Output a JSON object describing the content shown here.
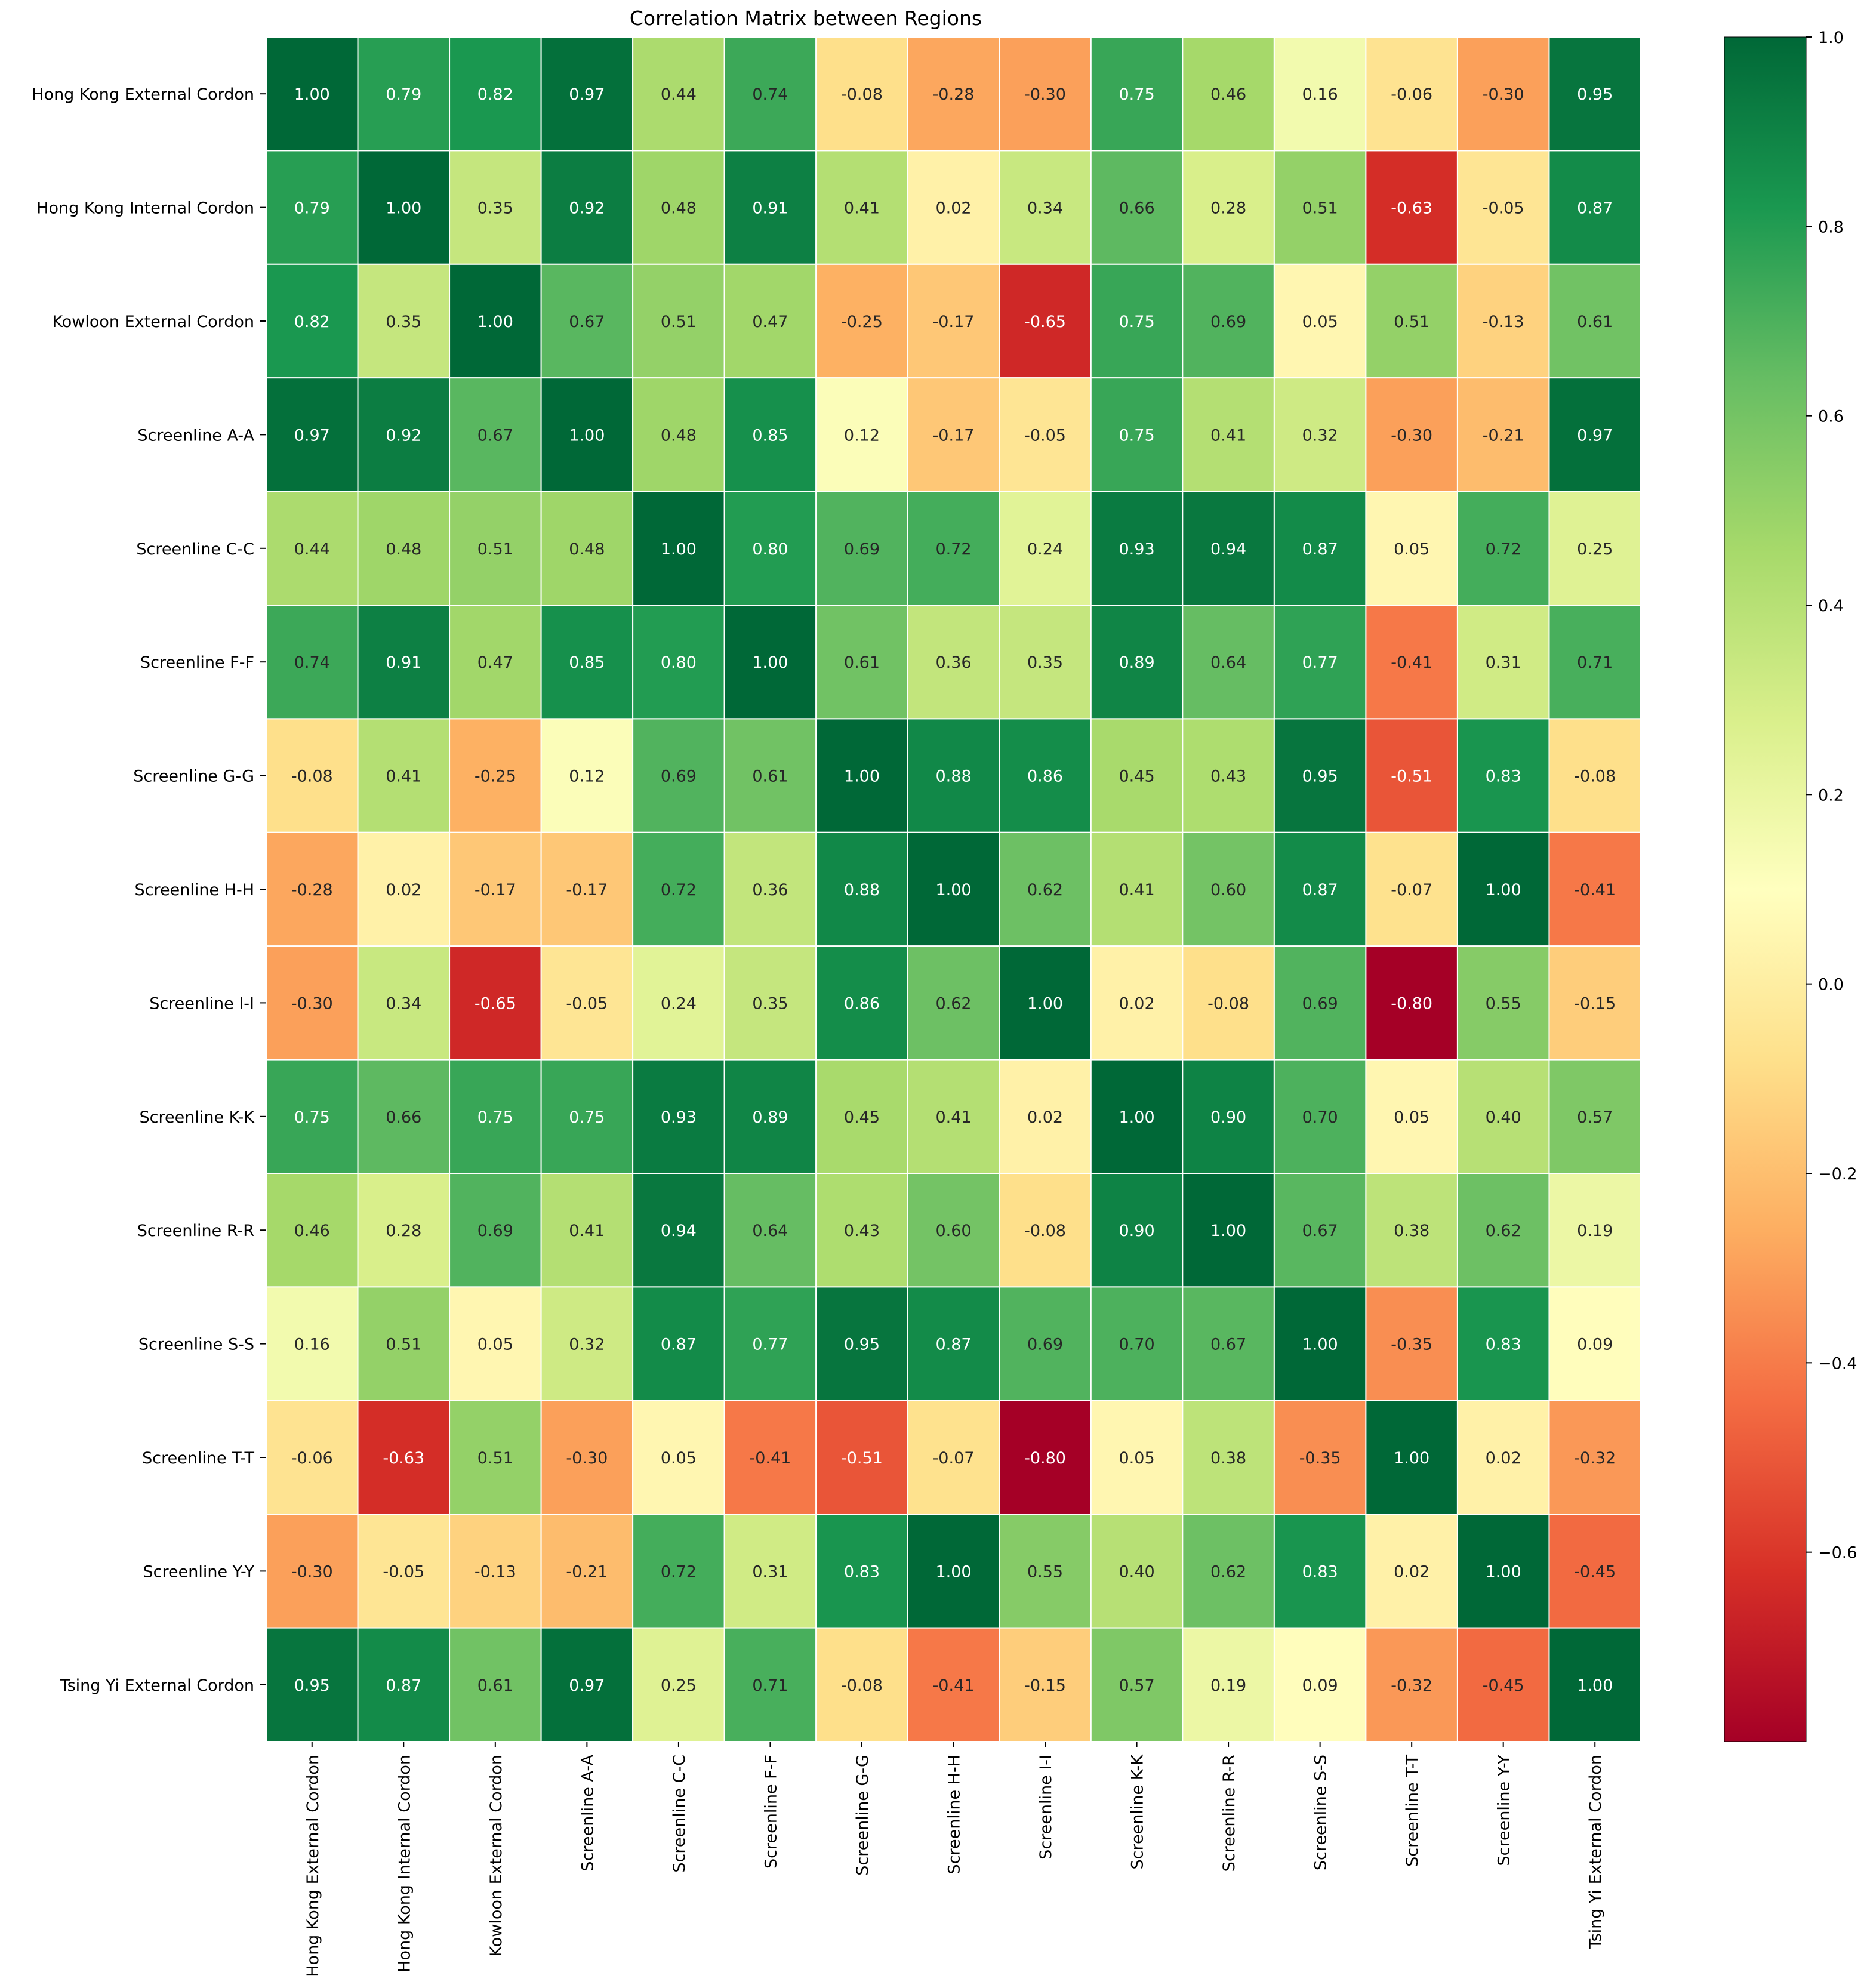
{
  "chart_data": {
    "type": "heatmap",
    "title": "Correlation Matrix between Regions",
    "xlabel": "",
    "ylabel": "",
    "colormap": "RdYlGn",
    "colorbar_range": [
      -0.8,
      1.0
    ],
    "colorbar_ticks": [
      "1.0",
      "0.8",
      "0.6",
      "0.4",
      "0.2",
      "0.0",
      "−0.2",
      "−0.4",
      "−0.6"
    ],
    "colorbar_tick_values": [
      1.0,
      0.8,
      0.6,
      0.4,
      0.2,
      0.0,
      -0.2,
      -0.4,
      -0.6
    ],
    "labels": [
      "Hong Kong External Cordon",
      "Hong Kong Internal Cordon",
      "Kowloon External Cordon",
      "Screenline A-A",
      "Screenline C-C",
      "Screenline F-F",
      "Screenline G-G",
      "Screenline H-H",
      "Screenline I-I",
      "Screenline K-K",
      "Screenline R-R",
      "Screenline S-S",
      "Screenline T-T",
      "Screenline Y-Y",
      "Tsing Yi External Cordon"
    ],
    "matrix": [
      [
        1.0,
        0.79,
        0.82,
        0.97,
        0.44,
        0.74,
        -0.08,
        -0.28,
        -0.3,
        0.75,
        0.46,
        0.16,
        -0.06,
        -0.3,
        0.95
      ],
      [
        0.79,
        1.0,
        0.35,
        0.92,
        0.48,
        0.91,
        0.41,
        0.02,
        0.34,
        0.66,
        0.28,
        0.51,
        -0.63,
        -0.05,
        0.87
      ],
      [
        0.82,
        0.35,
        1.0,
        0.67,
        0.51,
        0.47,
        -0.25,
        -0.17,
        -0.65,
        0.75,
        0.69,
        0.05,
        0.51,
        -0.13,
        0.61
      ],
      [
        0.97,
        0.92,
        0.67,
        1.0,
        0.48,
        0.85,
        0.12,
        -0.17,
        -0.05,
        0.75,
        0.41,
        0.32,
        -0.3,
        -0.21,
        0.97
      ],
      [
        0.44,
        0.48,
        0.51,
        0.48,
        1.0,
        0.8,
        0.69,
        0.72,
        0.24,
        0.93,
        0.94,
        0.87,
        0.05,
        0.72,
        0.25
      ],
      [
        0.74,
        0.91,
        0.47,
        0.85,
        0.8,
        1.0,
        0.61,
        0.36,
        0.35,
        0.89,
        0.64,
        0.77,
        -0.41,
        0.31,
        0.71
      ],
      [
        -0.08,
        0.41,
        -0.25,
        0.12,
        0.69,
        0.61,
        1.0,
        0.88,
        0.86,
        0.45,
        0.43,
        0.95,
        -0.51,
        0.83,
        -0.08
      ],
      [
        -0.28,
        0.02,
        -0.17,
        -0.17,
        0.72,
        0.36,
        0.88,
        1.0,
        0.62,
        0.41,
        0.6,
        0.87,
        -0.07,
        1.0,
        -0.41
      ],
      [
        -0.3,
        0.34,
        -0.65,
        -0.05,
        0.24,
        0.35,
        0.86,
        0.62,
        1.0,
        0.02,
        -0.08,
        0.69,
        -0.8,
        0.55,
        -0.15
      ],
      [
        0.75,
        0.66,
        0.75,
        0.75,
        0.93,
        0.89,
        0.45,
        0.41,
        0.02,
        1.0,
        0.9,
        0.7,
        0.05,
        0.4,
        0.57
      ],
      [
        0.46,
        0.28,
        0.69,
        0.41,
        0.94,
        0.64,
        0.43,
        0.6,
        -0.08,
        0.9,
        1.0,
        0.67,
        0.38,
        0.62,
        0.19
      ],
      [
        0.16,
        0.51,
        0.05,
        0.32,
        0.87,
        0.77,
        0.95,
        0.87,
        0.69,
        0.7,
        0.67,
        1.0,
        -0.35,
        0.83,
        0.09
      ],
      [
        -0.06,
        -0.63,
        0.51,
        -0.3,
        0.05,
        -0.41,
        -0.51,
        -0.07,
        -0.8,
        0.05,
        0.38,
        -0.35,
        1.0,
        0.02,
        -0.32
      ],
      [
        -0.3,
        -0.05,
        -0.13,
        -0.21,
        0.72,
        0.31,
        0.83,
        1.0,
        0.55,
        0.4,
        0.62,
        0.83,
        0.02,
        1.0,
        -0.45
      ],
      [
        0.95,
        0.87,
        0.61,
        0.97,
        0.25,
        0.71,
        -0.08,
        -0.41,
        -0.15,
        0.57,
        0.19,
        0.09,
        -0.32,
        -0.45,
        1.0
      ]
    ]
  }
}
